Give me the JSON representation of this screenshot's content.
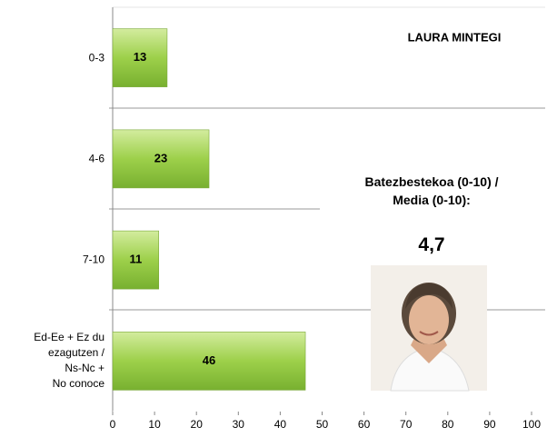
{
  "chart_data": {
    "type": "bar",
    "orientation": "horizontal",
    "title": "LAURA MINTEGI",
    "categories": [
      "0-3",
      "4-6",
      "7-10",
      "Ed-Ee + Ez du\nezagutzen /\nNs-Nc +\nNo conoce"
    ],
    "values": [
      13,
      23,
      11,
      46
    ],
    "color": "#8cc63f",
    "xlim": [
      0,
      100
    ],
    "xticks": [
      0,
      10,
      20,
      30,
      40,
      50,
      60,
      70,
      80,
      90,
      100
    ],
    "annotations": [
      "Batezbestekoa (0-10) /\nMedia (0-10):",
      "4,7"
    ]
  }
}
